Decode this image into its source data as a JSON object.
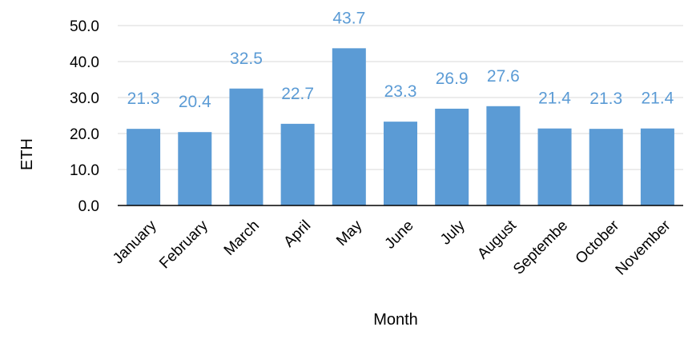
{
  "chart_data": {
    "type": "bar",
    "title": "",
    "xlabel": "Month",
    "ylabel": "ETH",
    "ylim": [
      0,
      50
    ],
    "yticks": [
      "0.0",
      "10.0",
      "20.0",
      "30.0",
      "40.0",
      "50.0"
    ],
    "grid": true,
    "legend": "none",
    "categories": [
      "January",
      "February",
      "March",
      "April",
      "May",
      "June",
      "July",
      "August",
      "Septembe",
      "October",
      "November"
    ],
    "values": [
      21.3,
      20.4,
      32.5,
      22.7,
      43.7,
      23.3,
      26.9,
      27.6,
      21.4,
      21.3,
      21.4
    ],
    "data_labels": [
      "21.3",
      "20.4",
      "32.5",
      "22.7",
      "43.7",
      "23.3",
      "26.9",
      "27.6",
      "21.4",
      "21.3",
      "21.4"
    ],
    "colors": {
      "bar": "#5B9BD5",
      "data_label": "#5B9BD5",
      "gridline": "#D9D9D9",
      "axis": "#000000"
    }
  }
}
